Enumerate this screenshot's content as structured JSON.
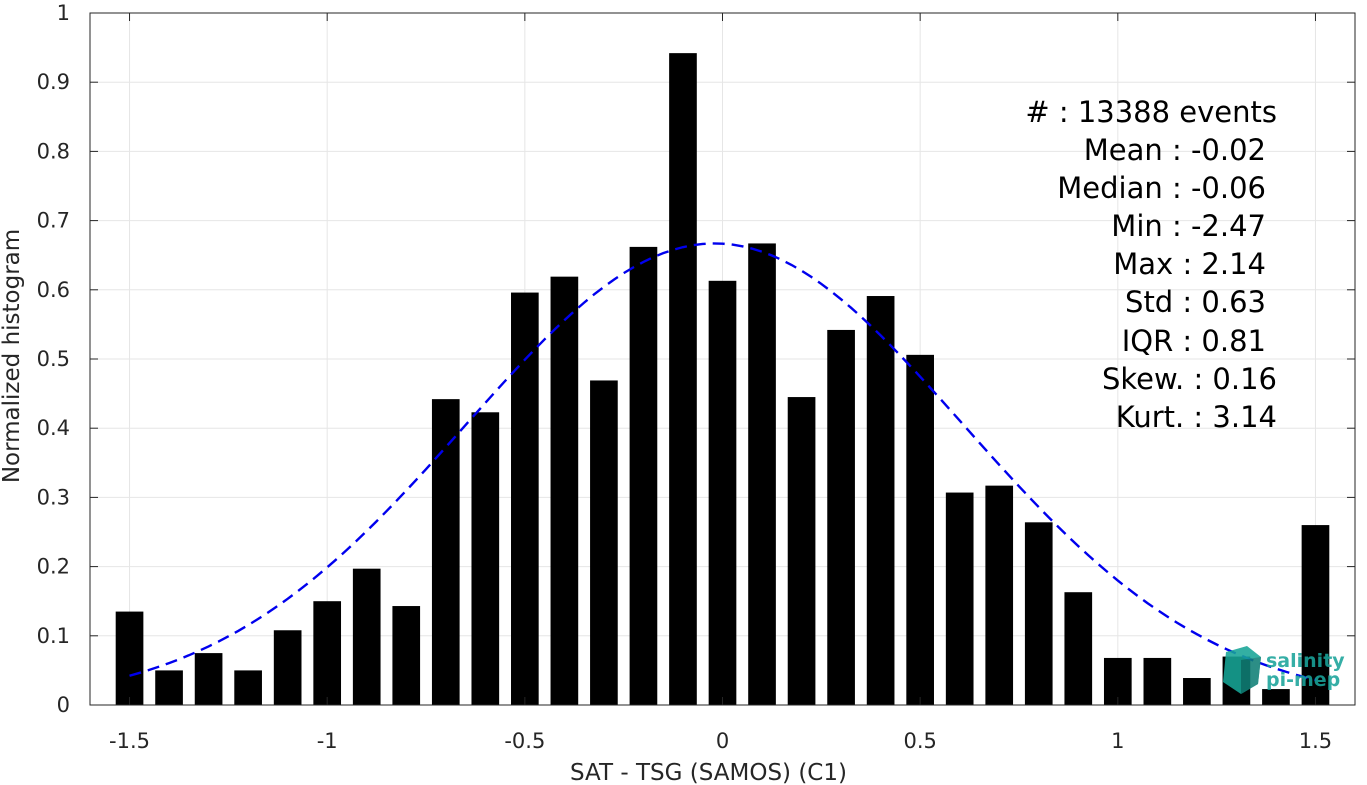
{
  "chart_data": {
    "type": "bar",
    "xlabel": "SAT - TSG (SAMOS) (C1)",
    "ylabel": "Normalized histogram",
    "xlim": [
      -1.6,
      1.6
    ],
    "ylim": [
      0,
      1
    ],
    "x_ticks": [
      "-1.5",
      "-1",
      "-0.5",
      "0",
      "0.5",
      "1",
      "1.5"
    ],
    "x_tick_values": [
      -1.5,
      -1,
      -0.5,
      0,
      0.5,
      1,
      1.5
    ],
    "y_ticks": [
      "0",
      "0.1",
      "0.2",
      "0.3",
      "0.4",
      "0.5",
      "0.6",
      "0.7",
      "0.8",
      "0.9",
      "1"
    ],
    "y_tick_values": [
      0,
      0.1,
      0.2,
      0.3,
      0.4,
      0.5,
      0.6,
      0.7,
      0.8,
      0.9,
      1
    ],
    "grid": true,
    "bar_color": "#000000",
    "bar_width": 0.07,
    "x": [
      -1.5,
      -1.4,
      -1.3,
      -1.2,
      -1.1,
      -1.0,
      -0.9,
      -0.8,
      -0.7,
      -0.6,
      -0.5,
      -0.4,
      -0.3,
      -0.2,
      -0.1,
      0.0,
      0.1,
      0.2,
      0.3,
      0.4,
      0.5,
      0.6,
      0.7,
      0.8,
      0.9,
      1.0,
      1.1,
      1.2,
      1.3,
      1.4,
      1.5
    ],
    "values": [
      0.135,
      0.05,
      0.075,
      0.05,
      0.108,
      0.15,
      0.197,
      0.143,
      0.442,
      0.423,
      0.596,
      0.619,
      0.469,
      0.662,
      0.942,
      0.613,
      0.667,
      0.445,
      0.542,
      0.591,
      0.506,
      0.307,
      0.317,
      0.264,
      0.163,
      0.068,
      0.068,
      0.039,
      0.07,
      0.023,
      0.26
    ],
    "fit": {
      "type": "gaussian",
      "mean": -0.02,
      "std": 0.63,
      "peak": 0.667,
      "x_range": [
        -1.5,
        1.5
      ],
      "color": "#0000ee",
      "style": "dashed"
    },
    "annotations": [
      "#  : 13388 events",
      "Mean : -0.02",
      "Median : -0.06",
      "Min : -2.47",
      "Max : 2.14",
      "Std : 0.63",
      "IQR : 0.81",
      "Skew. : 0.16",
      "Kurt. : 3.14"
    ]
  },
  "logo": {
    "line1": "salinity",
    "line2": "pi-mep",
    "color": "#1aa39a"
  }
}
